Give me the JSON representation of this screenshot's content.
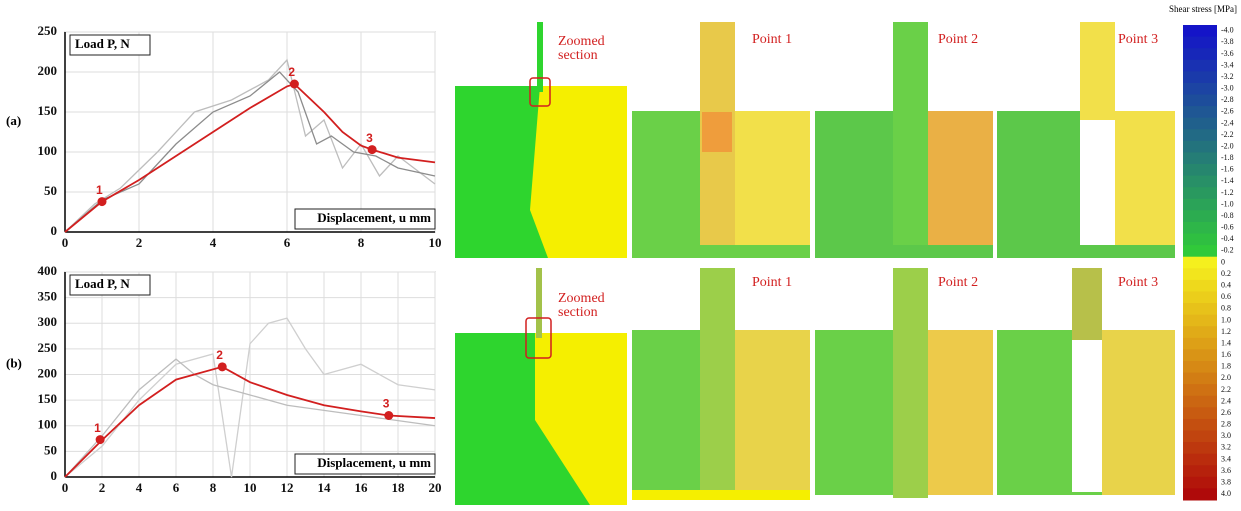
{
  "chart_data": [
    {
      "type": "line",
      "panel_label": "(a)",
      "y_label": "Load P, N",
      "x_label": "Displacement, u mm",
      "xlim": [
        0,
        10
      ],
      "xticks": [
        0,
        2,
        4,
        6,
        8,
        10
      ],
      "ylim": [
        0,
        250
      ],
      "yticks": [
        0,
        50,
        100,
        150,
        200,
        250
      ],
      "grid": true,
      "series": [
        {
          "color": "#bdbdbd",
          "x": [
            0,
            0.8,
            1.5,
            2.5,
            3.5,
            4.5,
            5.5,
            6,
            6.5,
            7,
            7.5,
            8,
            8.5,
            9,
            10
          ],
          "values": [
            0,
            35,
            55,
            100,
            150,
            165,
            190,
            215,
            120,
            140,
            80,
            110,
            70,
            95,
            60
          ]
        },
        {
          "color": "#8c8c8c",
          "x": [
            0,
            1,
            2,
            3,
            4,
            5,
            5.8,
            6.3,
            6.8,
            7.2,
            7.8,
            8.4,
            9,
            10
          ],
          "values": [
            0,
            40,
            60,
            110,
            150,
            170,
            200,
            175,
            110,
            120,
            100,
            95,
            80,
            70
          ]
        },
        {
          "color": "#d21f1f",
          "x": [
            0,
            1,
            2,
            3,
            4,
            5,
            6,
            6.2,
            7,
            7.5,
            8,
            8.3,
            9,
            10
          ],
          "values": [
            0,
            38,
            65,
            95,
            125,
            155,
            182,
            185,
            150,
            125,
            108,
            103,
            93,
            87
          ]
        }
      ],
      "markers": {
        "color": "#d21f1f",
        "x": [
          1,
          6.2,
          8.3
        ],
        "values": [
          38,
          185,
          103
        ],
        "labels": [
          "1",
          "2",
          "3"
        ]
      }
    },
    {
      "type": "line",
      "panel_label": "(b)",
      "y_label": "Load P, N",
      "x_label": "Displacement, u mm",
      "xlim": [
        0,
        20
      ],
      "xticks": [
        0,
        2,
        4,
        6,
        8,
        10,
        12,
        14,
        16,
        18,
        20
      ],
      "ylim": [
        0,
        400
      ],
      "yticks": [
        0,
        50,
        100,
        150,
        200,
        250,
        300,
        350,
        400
      ],
      "grid": true,
      "series": [
        {
          "color": "#cfcfcf",
          "x": [
            0,
            2,
            4,
            6,
            8,
            9,
            10,
            11,
            12,
            13,
            14,
            16,
            18,
            20
          ],
          "values": [
            0,
            60,
            150,
            220,
            240,
            0,
            260,
            300,
            310,
            250,
            200,
            220,
            180,
            170
          ]
        },
        {
          "color": "#bdbdbd",
          "x": [
            0,
            2,
            4,
            6,
            7,
            8,
            10,
            12,
            14,
            16,
            18,
            20
          ],
          "values": [
            0,
            80,
            170,
            230,
            200,
            180,
            160,
            140,
            130,
            120,
            110,
            100
          ]
        },
        {
          "color": "#d21f1f",
          "x": [
            0,
            2,
            4,
            6,
            8.5,
            10,
            12,
            14,
            16,
            17.5,
            20
          ],
          "values": [
            0,
            72,
            140,
            190,
            215,
            185,
            160,
            140,
            128,
            120,
            115
          ]
        }
      ],
      "markers": {
        "color": "#d21f1f",
        "x": [
          1.9,
          8.5,
          17.5
        ],
        "values": [
          73,
          215,
          120
        ],
        "labels": [
          "1",
          "2",
          "3"
        ]
      }
    }
  ],
  "panels": {
    "zoom_label_a": "Zoomed\nsection",
    "zoom_label_b": "Zoomed\nsection",
    "row_a": [
      "Point 1",
      "Point 2",
      "Point 3"
    ],
    "row_b": [
      "Point 1",
      "Point 2",
      "Point 3"
    ]
  },
  "colorbar": {
    "title": "Shear stress [MPa]",
    "labels": [
      "-4.0",
      "-3.8",
      "-3.6",
      "-3.4",
      "-3.2",
      "-3.0",
      "-2.8",
      "-2.6",
      "-2.4",
      "-2.2",
      "-2.0",
      "-1.8",
      "-1.6",
      "-1.4",
      "-1.2",
      "-1.0",
      "-0.8",
      "-0.6",
      "-0.4",
      "-0.2",
      "0",
      "0.2",
      "0.4",
      "0.6",
      "0.8",
      "1.0",
      "1.2",
      "1.4",
      "1.6",
      "1.8",
      "2.0",
      "2.2",
      "2.4",
      "2.6",
      "2.8",
      "3.0",
      "3.2",
      "3.4",
      "3.6",
      "3.8",
      "4.0"
    ]
  }
}
